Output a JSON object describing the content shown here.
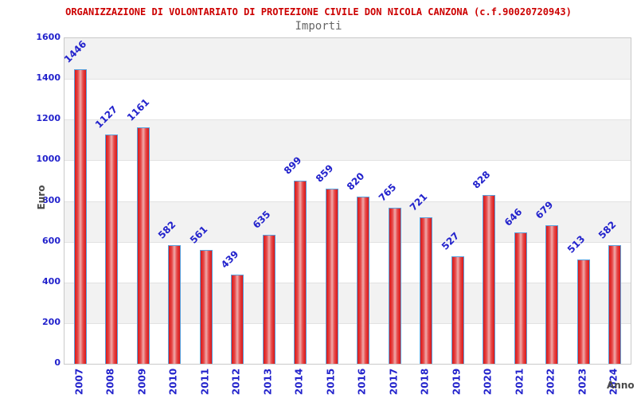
{
  "header": {
    "title": "ORGANIZZAZIONE DI VOLONTARIATO DI PROTEZIONE CIVILE DON NICOLA CANZONA (c.f.90020720943)",
    "subtitle": "Importi"
  },
  "y_axis": {
    "label": "Euro",
    "ticks": [
      0,
      200,
      400,
      600,
      800,
      1000,
      1200,
      1400,
      1600
    ]
  },
  "x_axis": {
    "label": "Anno"
  },
  "chart_data": {
    "type": "bar",
    "title": "ORGANIZZAZIONE DI VOLONTARIATO DI PROTEZIONE CIVILE DON NICOLA CANZONA (c.f.90020720943)",
    "subtitle": "Importi",
    "categories": [
      "2007",
      "2008",
      "2009",
      "2010",
      "2011",
      "2012",
      "2013",
      "2014",
      "2015",
      "2016",
      "2017",
      "2018",
      "2019",
      "2020",
      "2021",
      "2022",
      "2023",
      "2024"
    ],
    "values": [
      1446,
      1127,
      1161,
      582,
      561,
      439,
      635,
      899,
      859,
      820,
      765,
      721,
      527,
      828,
      646,
      679,
      513,
      582
    ],
    "xlabel": "Anno",
    "ylabel": "Euro",
    "ylim": [
      0,
      1600
    ],
    "ytick_step": 200,
    "grid": "horizontal-bands-alternating",
    "legend": "none",
    "value_labels": "rotated-45-above-bars",
    "category_labels": "rotated-90-vertical"
  },
  "colors": {
    "title_text": "#cc0000",
    "subtitle_text": "#666666",
    "tick_label_text": "#2222cc",
    "bar_value_text": "#2222cc",
    "axis_title_text": "#4a4a4a",
    "bar_fill_edge": "#da1717",
    "bar_fill_center": "#f0abab",
    "bar_border": "#58a0dc",
    "band_gray": "#f2f2f2",
    "band_white": "#ffffff",
    "plot_border": "#c9c9c9"
  }
}
